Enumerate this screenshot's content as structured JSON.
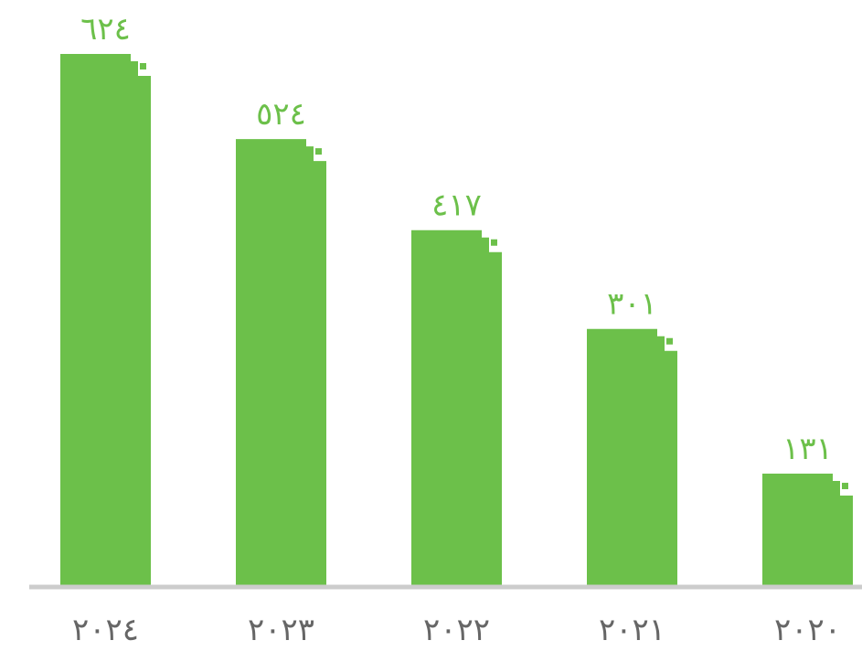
{
  "chart_data": {
    "type": "bar",
    "categories": [
      "٢٠٢٤",
      "٢٠٢٣",
      "٢٠٢٢",
      "٢٠٢١",
      "٢٠٢٠"
    ],
    "values": [
      624,
      524,
      417,
      301,
      131
    ],
    "value_labels": [
      "٦٢٤",
      "٥٢٤",
      "٤١٧",
      "٣٠١",
      "١٣١"
    ],
    "ylim": [
      0,
      624
    ],
    "grid": false,
    "legend": "none",
    "colors": {
      "bar": "#6cc04a",
      "value_label": "#6cc04a",
      "tick_label": "#666666",
      "baseline": "#cccccc"
    }
  }
}
